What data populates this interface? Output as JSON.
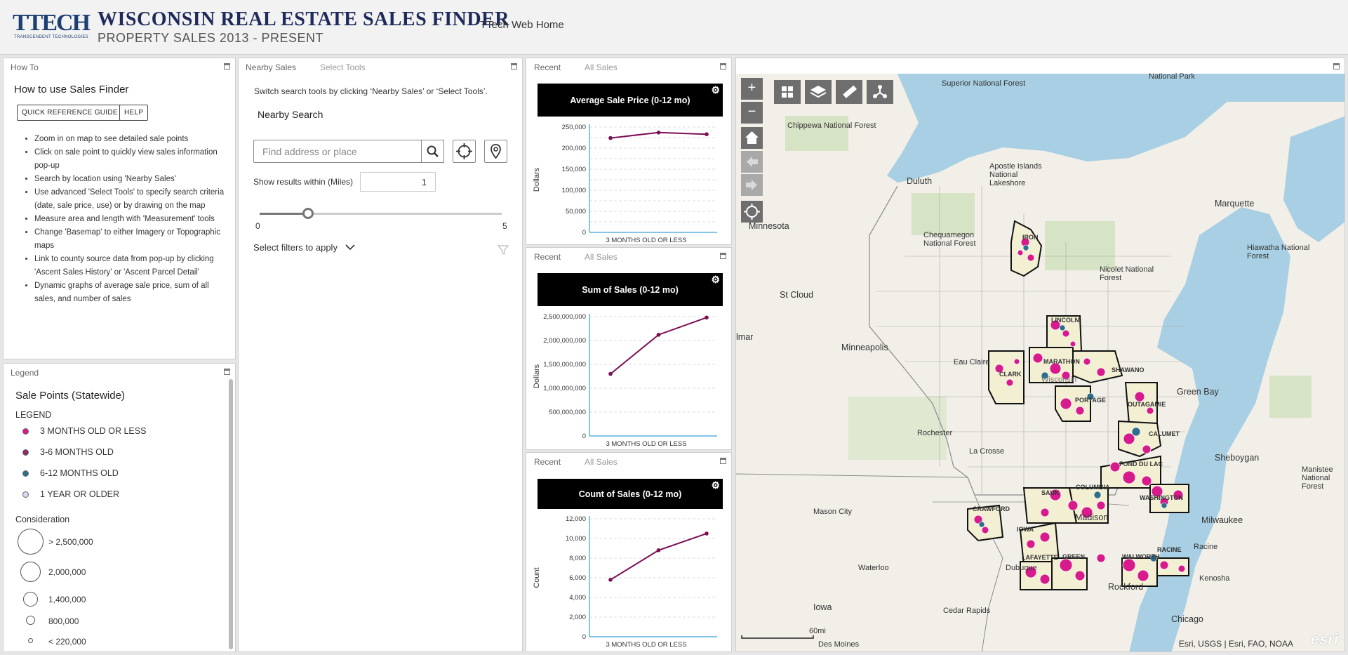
{
  "header": {
    "logo_main": "TTECH",
    "logo_sub": "TRANSCENDENT TECHNOLOGIES",
    "title": "WISCONSIN REAL ESTATE SALES FINDER",
    "subtitle": "PROPERTY SALES 2013 - PRESENT",
    "home_link": "TTech Web Home"
  },
  "howto": {
    "tab": "How To",
    "heading": "How to use Sales Finder",
    "buttons": [
      "QUICK REFERENCE GUIDE",
      "HELP"
    ],
    "items": [
      "Zoom in on map to see detailed sale points",
      "Click on sale point to quickly view sales information pop-up",
      "Search by location using 'Nearby Sales'",
      "Use advanced 'Select Tools' to specify search criteria (date, sale price, use) or by drawing on the map",
      "Measure area and length with 'Measurement' tools",
      "Change 'Basemap' to either Imagery or Topographic maps",
      "Link to county source data from pop-up by clicking 'Ascent Sales History' or 'Ascent Parcel Detail'",
      "Dynamic graphs of average sale price, sum of all sales, and number of sales"
    ]
  },
  "legend": {
    "tab": "Legend",
    "heading": "Sale Points (Statewide)",
    "sub": "LEGEND",
    "items": [
      {
        "label": "3 MONTHS OLD OR LESS",
        "color": "#d81b8c"
      },
      {
        "label": "3-6 MONTHS OLD",
        "color": "#8e2a64"
      },
      {
        "label": "6-12 MONTHS OLD",
        "color": "#2f6e8a"
      },
      {
        "label": "1 YEAR OR OLDER",
        "color": "#dcd6f0"
      }
    ],
    "consideration_label": "Consideration",
    "sizes": [
      "> 2,500,000",
      "2,000,000",
      "1,400,000",
      "800,000",
      "< 220,000"
    ]
  },
  "nearby": {
    "tabs": [
      "Nearby Sales",
      "Select Tools"
    ],
    "info": "Switch search tools by clicking ‘Nearby Sales’ or ‘Select Tools’.",
    "heading": "Nearby Search",
    "search_placeholder": "Find address or place",
    "within_label": "Show results within (Miles)",
    "within_value": "1",
    "slider_min": "0",
    "slider_max": "5",
    "slider_value": 1,
    "filters_label": "Select filters to apply"
  },
  "chart_panels": [
    {
      "tabs": [
        "Recent",
        "All Sales"
      ],
      "title": "Average Sale Price (0-12 mo)"
    },
    {
      "tabs": [
        "Recent",
        "All Sales"
      ],
      "title": "Sum of Sales (0-12 mo)"
    },
    {
      "tabs": [
        "Recent",
        "All Sales"
      ],
      "title": "Count of Sales (0-12 mo)"
    }
  ],
  "chart_data": [
    {
      "type": "line",
      "title": "Average Sale Price (0-12 mo)",
      "xlabel": "3 MONTHS OLD OR LESS",
      "ylabel": "Dollars",
      "ylim": [
        0,
        250000
      ],
      "yticks": [
        "0",
        "25,000",
        "50,000",
        "75,000",
        "100,000",
        "125,000",
        "150,000",
        "175,000",
        "200,000",
        "225,000",
        "250,000"
      ],
      "ytick_values": [
        0,
        25000,
        50000,
        75000,
        100000,
        125000,
        150000,
        175000,
        200000,
        225000,
        250000
      ],
      "ytick_show": [
        true,
        false,
        true,
        false,
        true,
        false,
        true,
        false,
        true,
        false,
        true
      ],
      "series": [
        {
          "values": [
            224000,
            237000,
            233000
          ],
          "color": "#7a0f52"
        }
      ]
    },
    {
      "type": "line",
      "title": "Sum of Sales (0-12 mo)",
      "xlabel": "3 MONTHS OLD OR LESS",
      "ylabel": "Dollars",
      "ylim": [
        0,
        2500000000
      ],
      "yticks": [
        "0",
        "500,000,000",
        "1,000,000,000",
        "1,500,000,000",
        "2,000,000,000",
        "2,500,000,000"
      ],
      "ytick_values": [
        0,
        500000000,
        1000000000,
        1500000000,
        2000000000,
        2500000000
      ],
      "ytick_show": [
        true,
        true,
        true,
        true,
        true,
        true
      ],
      "series": [
        {
          "values": [
            1300000000,
            2120000000,
            2480000000
          ],
          "color": "#7a0f52"
        }
      ]
    },
    {
      "type": "line",
      "title": "Count of Sales (0-12 mo)",
      "xlabel": "3 MONTHS OLD OR LESS",
      "ylabel": "Count",
      "ylim": [
        0,
        12000
      ],
      "yticks": [
        "0",
        "2,000",
        "4,000",
        "6,000",
        "8,000",
        "10,000",
        "12,000"
      ],
      "ytick_values": [
        0,
        2000,
        4000,
        6000,
        8000,
        10000,
        12000
      ],
      "ytick_show": [
        true,
        true,
        true,
        true,
        true,
        true,
        true
      ],
      "series": [
        {
          "values": [
            5800,
            8800,
            10500
          ],
          "color": "#7a0f52"
        }
      ]
    }
  ],
  "map": {
    "attribution": "Esri, USGS | Esri, FAO, NOAA",
    "esri_logo": "esri",
    "scale_label": "60mi",
    "tools": [
      "basemap-gallery",
      "layer-list",
      "eraser",
      "measure",
      "share"
    ],
    "labels": [
      "Superior National Forest",
      "National Park",
      "Chippewa National Forest",
      "Duluth",
      "Apostle Islands National Lakeshore",
      "Marquette",
      "Minnesota",
      "Chequamegon National Forest",
      "IRON",
      "Hiawatha National Forest",
      "Nicolet National Forest",
      "St Cloud",
      "lmar",
      "LINCOLN",
      "Minneapolis",
      "Eau Claire",
      "CLARK",
      "MARATHON",
      "Wisconsin",
      "SHAWANO",
      "PORTAGE",
      "OUTAGAMIE",
      "Green Bay",
      "Rochester",
      "CALUMET",
      "La Crosse",
      "FOND DU LAC",
      "Sheboygan",
      "Manistee National Forest",
      "CRAWFORD",
      "SAUK",
      "COLUMBIA",
      "WASHINGTON",
      "Mason City",
      "Madison",
      "Milwaukee",
      "IOWA",
      "LAFAYETTE",
      "GREEN",
      "WALWORTH",
      "RACINE",
      "Racine",
      "Waterloo",
      "Dubuque",
      "Kenosha",
      "Rockford",
      "Iowa",
      "Cedar Rapids",
      "Chicago",
      "Des Moines"
    ]
  }
}
